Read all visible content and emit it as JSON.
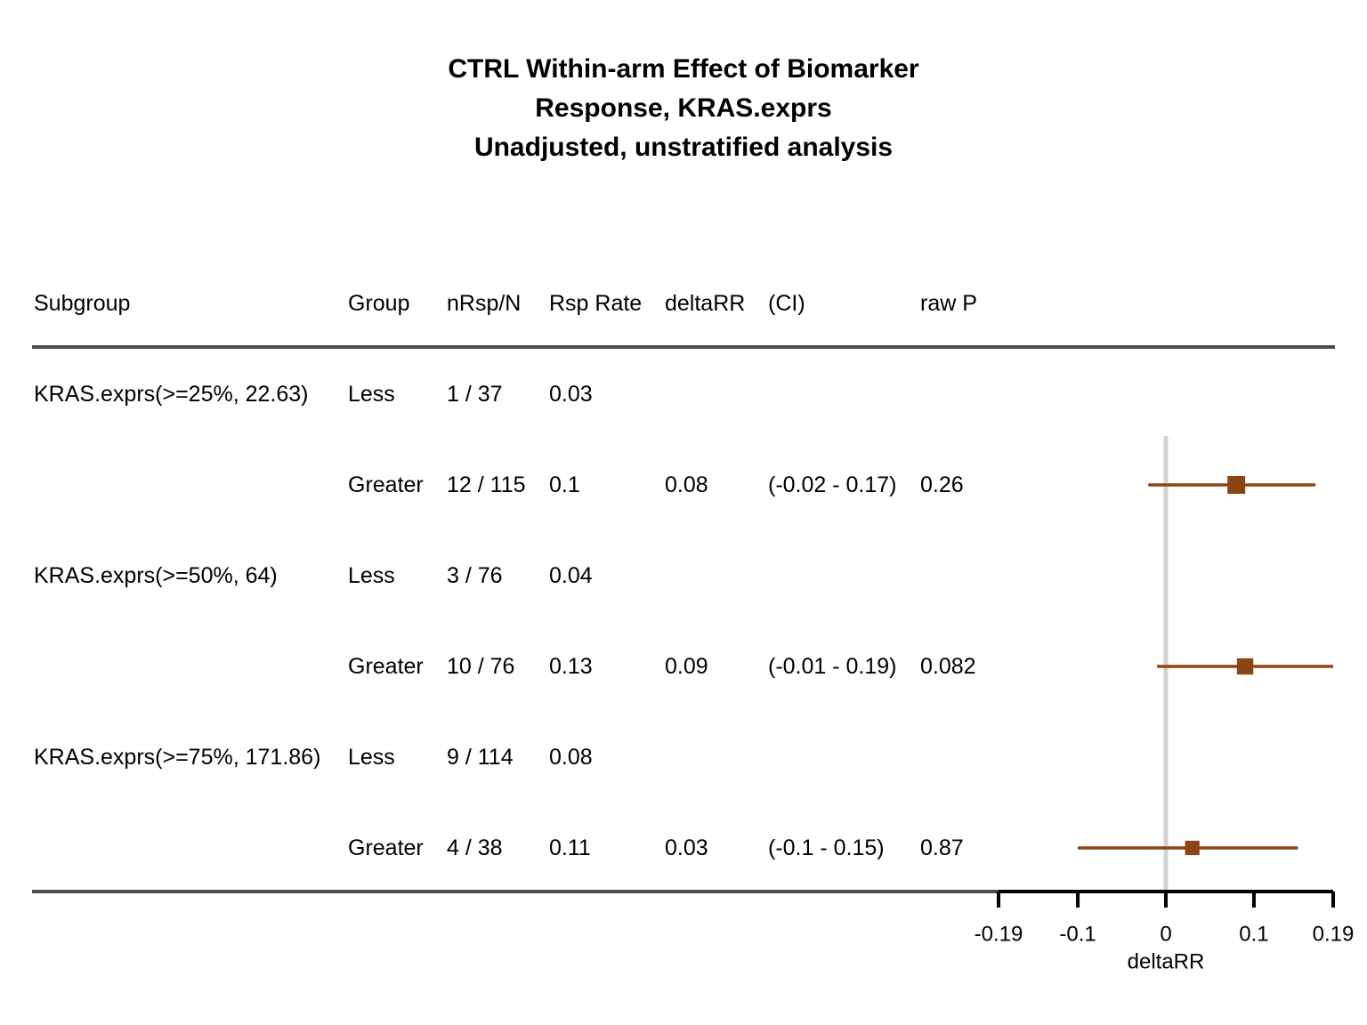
{
  "title": {
    "line1": "CTRL Within-arm Effect of Biomarker",
    "line2": "Response, KRAS.exprs",
    "line3": "Unadjusted, unstratified analysis"
  },
  "table": {
    "headers": [
      "Subgroup",
      "Group",
      "nRsp/N",
      "Rsp Rate",
      "deltaRR",
      "(CI)",
      "raw P"
    ],
    "rows": [
      {
        "subgroup": "KRAS.exprs(>=25%, 22.63)",
        "group": "Less",
        "nrsp_n": "1 / 37",
        "rate": "0.03",
        "delta": "",
        "ci": "",
        "p": ""
      },
      {
        "subgroup": "",
        "group": "Greater",
        "nrsp_n": "12 / 115",
        "rate": "0.1",
        "delta": "0.08",
        "ci": "(-0.02 - 0.17)",
        "p": "0.26"
      },
      {
        "subgroup": "KRAS.exprs(>=50%, 64)",
        "group": "Less",
        "nrsp_n": "3 / 76",
        "rate": "0.04",
        "delta": "",
        "ci": "",
        "p": ""
      },
      {
        "subgroup": "",
        "group": "Greater",
        "nrsp_n": "10 / 76",
        "rate": "0.13",
        "delta": "0.09",
        "ci": "(-0.01 - 0.19)",
        "p": "0.082"
      },
      {
        "subgroup": "KRAS.exprs(>=75%, 171.86)",
        "group": "Less",
        "nrsp_n": "9 / 114",
        "rate": "0.08",
        "delta": "",
        "ci": "",
        "p": ""
      },
      {
        "subgroup": "",
        "group": "Greater",
        "nrsp_n": "4 / 38",
        "rate": "0.11",
        "delta": "0.03",
        "ci": "(-0.1 - 0.15)",
        "p": "0.87"
      }
    ]
  },
  "chart_data": {
    "type": "forest",
    "xlabel": "deltaRR",
    "xlim": [
      -0.19,
      0.19
    ],
    "ticks": [
      -0.19,
      -0.1,
      0,
      0.1,
      0.19
    ],
    "tick_labels": [
      "-0.19",
      "-0.1",
      "0",
      "0.1",
      "0.19"
    ],
    "reference_line": 0,
    "points": [
      {
        "row": 1,
        "estimate": 0.08,
        "lower": -0.02,
        "upper": 0.17,
        "weight": 115
      },
      {
        "row": 3,
        "estimate": 0.09,
        "lower": -0.01,
        "upper": 0.19,
        "weight": 76
      },
      {
        "row": 5,
        "estimate": 0.03,
        "lower": -0.1,
        "upper": 0.15,
        "weight": 38
      }
    ],
    "colors": {
      "marker": "#8B4513",
      "reference": "#d3d3d3",
      "rule": "#4d4d4d",
      "axis": "#000000"
    }
  }
}
